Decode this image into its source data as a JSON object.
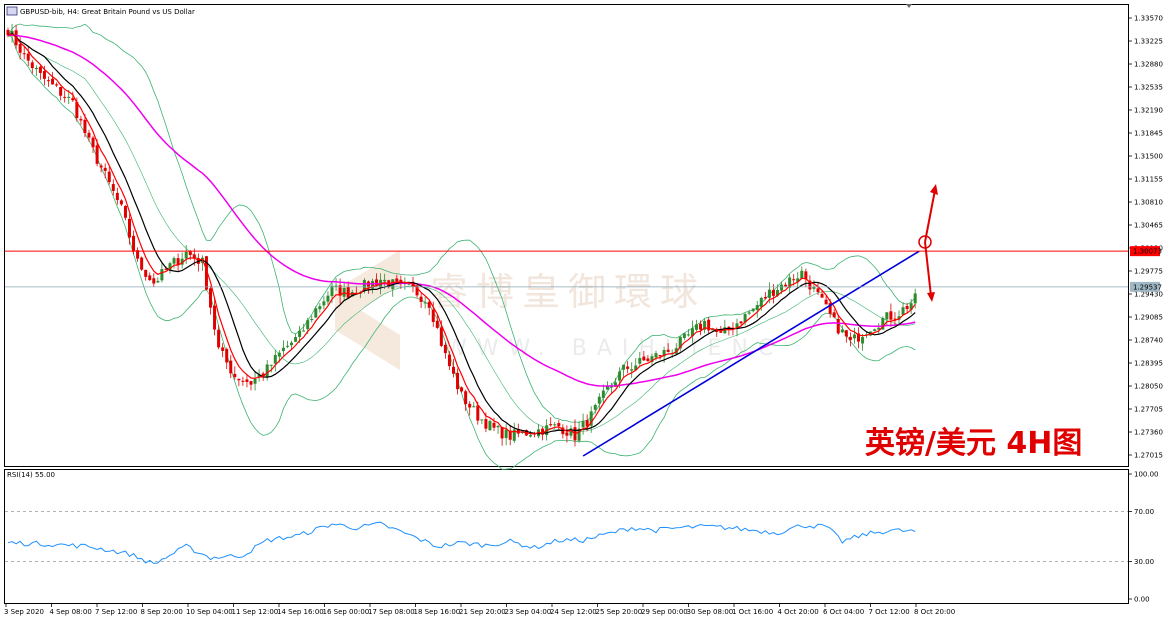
{
  "chart_data": {
    "type": "candlestick",
    "title": "GBPUSD-bib, H4:  Great Britain Pound vs US Dollar",
    "caption": "英镑/美元 4H图",
    "watermark": "睿博皇御環球",
    "watermark_sub": "WWW. BAIHUIENC",
    "price_axis_ticks": [
      "1.33570",
      "1.33225",
      "1.32880",
      "1.32535",
      "1.32190",
      "1.31845",
      "1.31500",
      "1.31155",
      "1.30810",
      "1.30465",
      "1.30120",
      "1.29775",
      "1.29430",
      "1.29085",
      "1.28740",
      "1.28395",
      "1.28050",
      "1.27705",
      "1.27360",
      "1.27015"
    ],
    "price_ylim": [
      1.2685,
      1.3375
    ],
    "horizontal_line": {
      "label": "1.30073",
      "value": 1.30073,
      "color": "#ff0000"
    },
    "current_price": {
      "label": "1.29537",
      "value": 1.29537
    },
    "x_tick_labels": [
      "3 Sep 2020",
      "4 Sep 08:00",
      "7 Sep 12:00",
      "8 Sep 20:00",
      "10 Sep 04:00",
      "11 Sep 12:00",
      "14 Sep 16:00",
      "16 Sep 00:00",
      "17 Sep 08:00",
      "18 Sep 16:00",
      "21 Sep 20:00",
      "23 Sep 04:00",
      "24 Sep 12:00",
      "25 Sep 20:00",
      "29 Sep 00:00",
      "30 Sep 08:00",
      "1 Oct 16:00",
      "4 Oct 20:00",
      "6 Oct 04:00",
      "7 Oct 12:00",
      "8 Oct 20:00"
    ],
    "close_anchors": [
      [
        0,
        1.334
      ],
      [
        4,
        1.33
      ],
      [
        8,
        1.327
      ],
      [
        12,
        1.325
      ],
      [
        16,
        1.323
      ],
      [
        20,
        1.317
      ],
      [
        24,
        1.312
      ],
      [
        28,
        1.307
      ],
      [
        32,
        1.299
      ],
      [
        36,
        1.296
      ],
      [
        40,
        1.2985
      ],
      [
        44,
        1.3005
      ],
      [
        48,
        1.299
      ],
      [
        52,
        1.286
      ],
      [
        56,
        1.282
      ],
      [
        60,
        1.281
      ],
      [
        64,
        1.283
      ],
      [
        68,
        1.286
      ],
      [
        72,
        1.288
      ],
      [
        76,
        1.292
      ],
      [
        80,
        1.295
      ],
      [
        84,
        1.2945
      ],
      [
        88,
        1.2955
      ],
      [
        92,
        1.2965
      ],
      [
        96,
        1.2955
      ],
      [
        100,
        1.295
      ],
      [
        104,
        1.293
      ],
      [
        108,
        1.285
      ],
      [
        112,
        1.279
      ],
      [
        116,
        1.276
      ],
      [
        120,
        1.274
      ],
      [
        124,
        1.273
      ],
      [
        128,
        1.2735
      ],
      [
        132,
        1.274
      ],
      [
        136,
        1.2745
      ],
      [
        140,
        1.273
      ],
      [
        144,
        1.276
      ],
      [
        148,
        1.28
      ],
      [
        152,
        1.283
      ],
      [
        156,
        1.284
      ],
      [
        160,
        1.285
      ],
      [
        164,
        1.286
      ],
      [
        168,
        1.288
      ],
      [
        172,
        1.29
      ],
      [
        176,
        1.288
      ],
      [
        180,
        1.29
      ],
      [
        184,
        1.292
      ],
      [
        188,
        1.2945
      ],
      [
        192,
        1.296
      ],
      [
        196,
        1.2975
      ],
      [
        200,
        1.294
      ],
      [
        204,
        1.29
      ],
      [
        208,
        1.287
      ],
      [
        212,
        1.289
      ],
      [
        216,
        1.2905
      ],
      [
        220,
        1.2915
      ],
      [
        224,
        1.2935
      ]
    ],
    "rsi": {
      "label": "RSI(14) 55.00",
      "ylim": [
        0,
        100
      ],
      "ticks": [
        "100.00",
        "70.00",
        "30.00",
        "0.00"
      ],
      "levels": [
        70,
        30
      ],
      "anchors": [
        [
          0,
          45
        ],
        [
          10,
          44
        ],
        [
          20,
          42
        ],
        [
          30,
          36
        ],
        [
          36,
          28
        ],
        [
          44,
          42
        ],
        [
          50,
          33
        ],
        [
          58,
          35
        ],
        [
          64,
          47
        ],
        [
          72,
          51
        ],
        [
          80,
          60
        ],
        [
          86,
          57
        ],
        [
          92,
          60
        ],
        [
          100,
          50
        ],
        [
          106,
          42
        ],
        [
          112,
          45
        ],
        [
          118,
          43
        ],
        [
          124,
          46
        ],
        [
          130,
          41
        ],
        [
          136,
          47
        ],
        [
          142,
          47
        ],
        [
          148,
          52
        ],
        [
          154,
          57
        ],
        [
          160,
          55
        ],
        [
          166,
          57
        ],
        [
          172,
          58
        ],
        [
          178,
          57
        ],
        [
          184,
          55
        ],
        [
          190,
          53
        ],
        [
          196,
          59
        ],
        [
          202,
          58
        ],
        [
          206,
          46
        ],
        [
          212,
          52
        ],
        [
          218,
          55
        ],
        [
          224,
          54
        ]
      ]
    }
  },
  "colors": {
    "bull": "#2e8b2e",
    "bear": "#e00000",
    "ema_fast": "#ff0000",
    "ema_slow": "#000000",
    "ma_long": "#ee00ee",
    "bands": "#3cb371",
    "trendline": "#0000dd",
    "rsi_line": "#1e90ff"
  }
}
